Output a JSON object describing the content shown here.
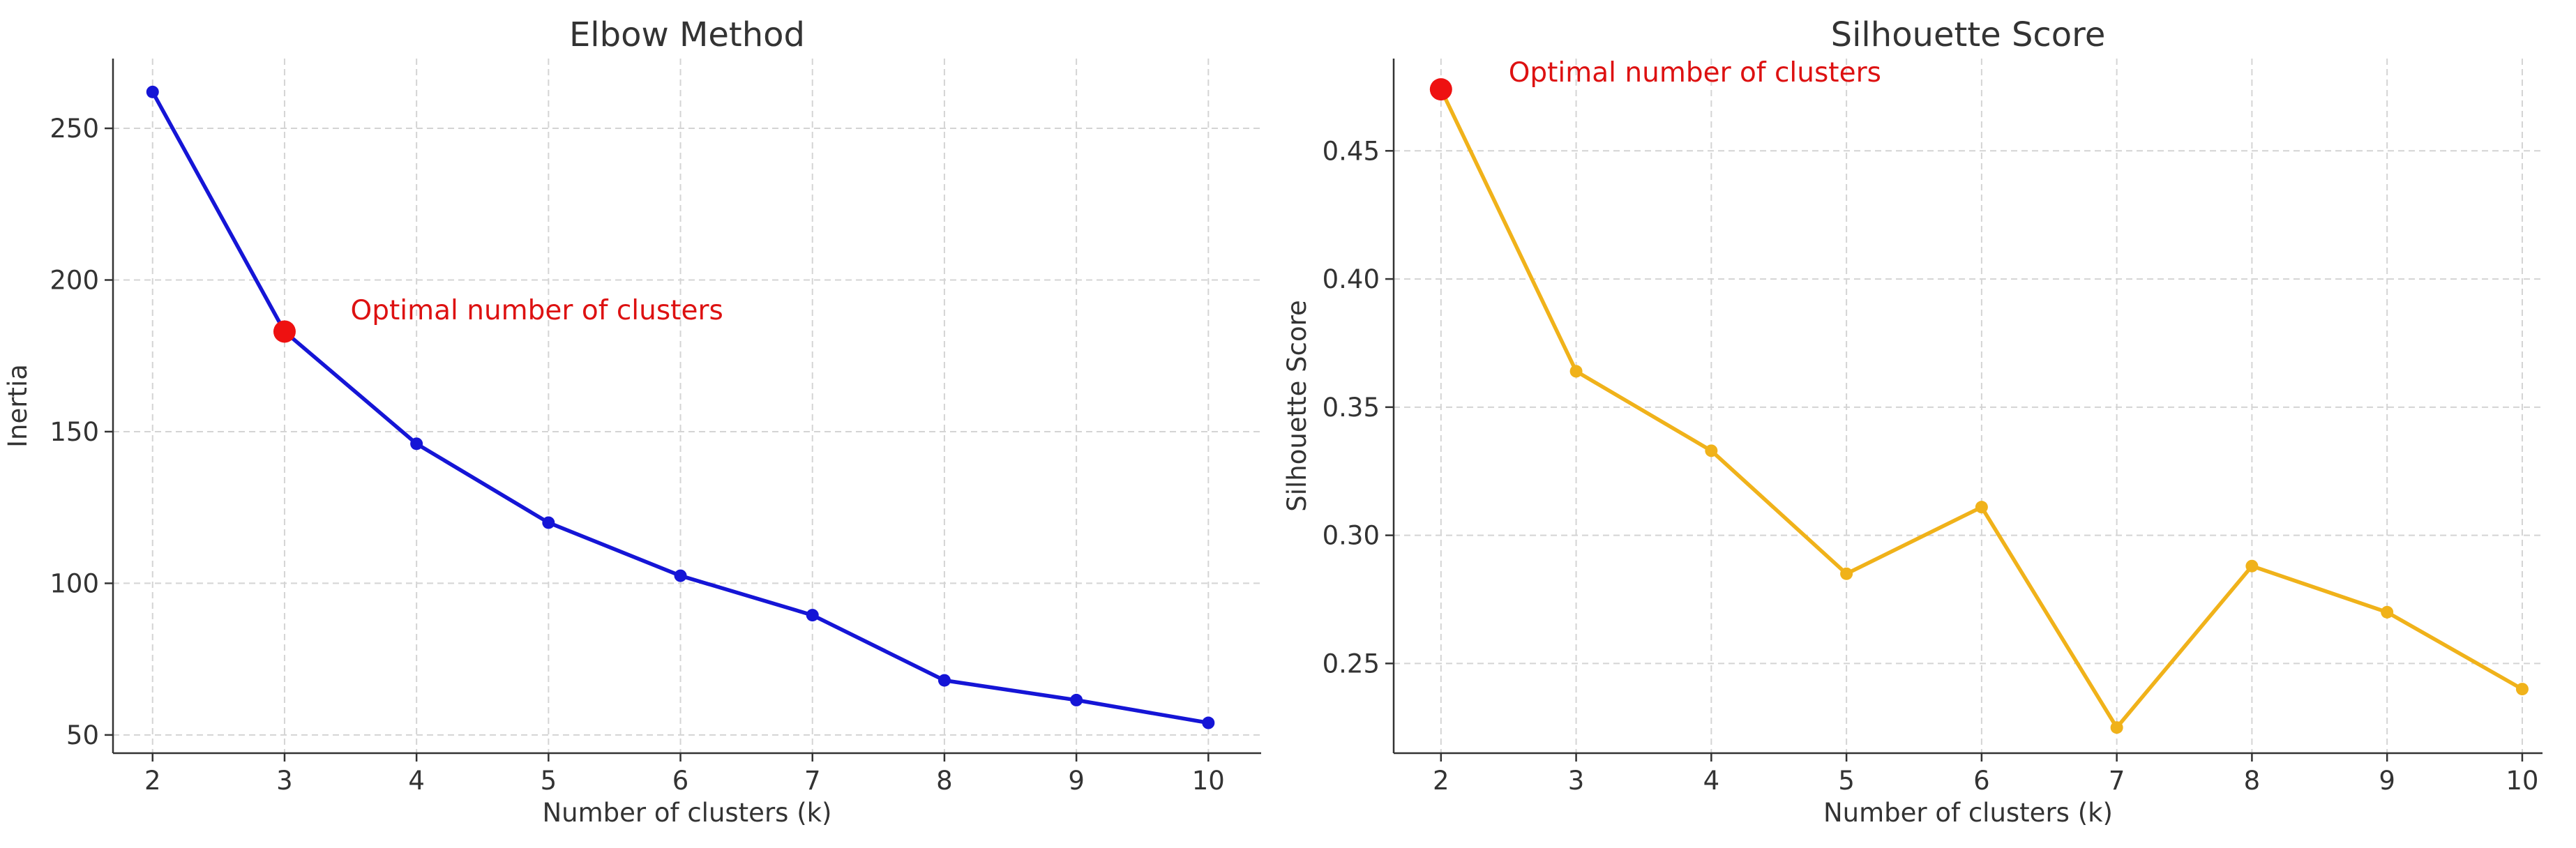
{
  "chart_data": [
    {
      "type": "line",
      "title": "Elbow Method",
      "xlabel": "Number of clusters (k)",
      "ylabel": "Inertia",
      "x": [
        2,
        3,
        4,
        5,
        6,
        7,
        8,
        9,
        10
      ],
      "xticks": [
        "2",
        "3",
        "4",
        "5",
        "6",
        "7",
        "8",
        "9",
        "10"
      ],
      "xlim": [
        1.7,
        10.4
      ],
      "ylim": [
        44,
        273
      ],
      "yticks": [
        50,
        100,
        150,
        200,
        250
      ],
      "ytick_labels": [
        "50",
        "100",
        "150",
        "200",
        "250"
      ],
      "grid": true,
      "series": [
        {
          "values": [
            262,
            183,
            146,
            120,
            102.5,
            89.5,
            68,
            61.5,
            54
          ],
          "color": "#1515d6"
        }
      ],
      "highlight": {
        "x": 3,
        "y": 183,
        "color": "#ee1111"
      },
      "annotation": {
        "text": "Optimal number of clusters",
        "x": 3.5,
        "y": 187,
        "color": "#dd1111"
      }
    },
    {
      "type": "line",
      "title": "Silhouette Score",
      "xlabel": "Number of clusters (k)",
      "ylabel": "Silhouette Score",
      "x": [
        2,
        3,
        4,
        5,
        6,
        7,
        8,
        9,
        10
      ],
      "xticks": [
        "2",
        "3",
        "4",
        "5",
        "6",
        "7",
        "8",
        "9",
        "10"
      ],
      "xlim": [
        1.65,
        10.15
      ],
      "ylim": [
        0.215,
        0.486
      ],
      "yticks": [
        0.25,
        0.3,
        0.35,
        0.4,
        0.45
      ],
      "ytick_labels": [
        "0.25",
        "0.30",
        "0.35",
        "0.40",
        "0.45"
      ],
      "grid": true,
      "series": [
        {
          "values": [
            0.474,
            0.364,
            0.333,
            0.285,
            0.311,
            0.225,
            0.288,
            0.27,
            0.24
          ],
          "color": "#f0b21a"
        }
      ],
      "highlight": {
        "x": 2,
        "y": 0.474,
        "color": "#ee1111"
      },
      "annotation": {
        "text": "Optimal number of clusters",
        "x": 2.5,
        "y": 0.477,
        "color": "#dd1111"
      }
    }
  ]
}
